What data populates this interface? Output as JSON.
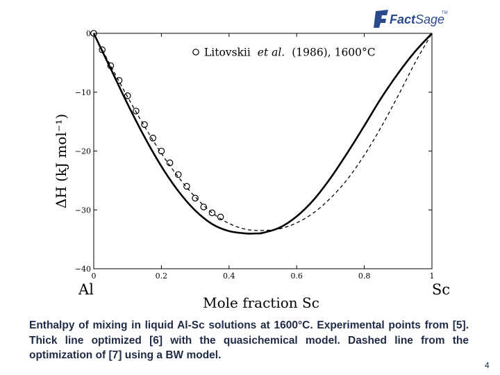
{
  "chart_data": {
    "type": "line",
    "title": "",
    "xlabel": "Mole fraction Sc",
    "ylabel": "ΔH (kJ mol⁻¹)",
    "xlim": [
      0,
      1
    ],
    "ylim": [
      -40,
      0
    ],
    "x_ticks": [
      0,
      0.2,
      0.4,
      0.6,
      0.8,
      1
    ],
    "x_tick_labels": [
      "0",
      "0.2",
      "0.4",
      "0.6",
      "0.8",
      "1"
    ],
    "y_ticks": [
      0,
      -10,
      -20,
      -30,
      -40
    ],
    "y_tick_labels": [
      "0",
      "−10",
      "−20",
      "−30",
      "−40"
    ],
    "endpoint_labels": {
      "left": "Al",
      "right": "Sc"
    },
    "grid": false,
    "legend_position": "top-right",
    "legend": {
      "marker": "○",
      "name": "Litovskii",
      "name_italic": "et al.",
      "detail": "(1986), 1600°C"
    },
    "series": [
      {
        "style": "thick-solid",
        "x": [
          0,
          0.05,
          0.1,
          0.15,
          0.2,
          0.25,
          0.3,
          0.35,
          0.4,
          0.45,
          0.48,
          0.5,
          0.55,
          0.6,
          0.65,
          0.7,
          0.75,
          0.8,
          0.85,
          0.9,
          0.95,
          1.0
        ],
        "y": [
          0,
          -6.0,
          -12.0,
          -17.6,
          -22.6,
          -26.8,
          -30.1,
          -32.4,
          -33.6,
          -34.0,
          -34.0,
          -33.9,
          -33.0,
          -31.1,
          -28.3,
          -24.6,
          -20.3,
          -15.7,
          -11.0,
          -6.8,
          -3.1,
          0
        ]
      },
      {
        "style": "dashed",
        "x": [
          0,
          0.05,
          0.1,
          0.15,
          0.2,
          0.25,
          0.3,
          0.35,
          0.4,
          0.45,
          0.5,
          0.55,
          0.6,
          0.65,
          0.7,
          0.75,
          0.8,
          0.85,
          0.9,
          0.95,
          1.0
        ],
        "y": [
          0,
          -5.5,
          -10.8,
          -15.8,
          -20.4,
          -24.4,
          -27.8,
          -30.5,
          -32.3,
          -33.3,
          -33.5,
          -33.2,
          -32.2,
          -30.5,
          -28.0,
          -24.8,
          -20.7,
          -15.9,
          -10.6,
          -5.0,
          0
        ]
      }
    ],
    "points": {
      "x": [
        0.0,
        0.025,
        0.05,
        0.075,
        0.1,
        0.125,
        0.15,
        0.175,
        0.2,
        0.225,
        0.25,
        0.275,
        0.3,
        0.325,
        0.35,
        0.375
      ],
      "y": [
        0.0,
        -2.8,
        -5.5,
        -8.0,
        -10.6,
        -13.2,
        -15.5,
        -17.8,
        -20.0,
        -22.0,
        -24.0,
        -26.0,
        -28.0,
        -29.5,
        -30.5,
        -31.2
      ]
    }
  },
  "caption": "Enthalpy of mixing in liquid Al-Sc solutions at 1600°C. Experimental points from [5]. Thick line optimized [6] with the quasichemical model. Dashed line from the optimization of [7] using a BW model.",
  "page_number": "4",
  "logo": {
    "text_a": "Fact",
    "text_b": "Sage",
    "tm": "TM",
    "color": "#2b4a8c"
  }
}
